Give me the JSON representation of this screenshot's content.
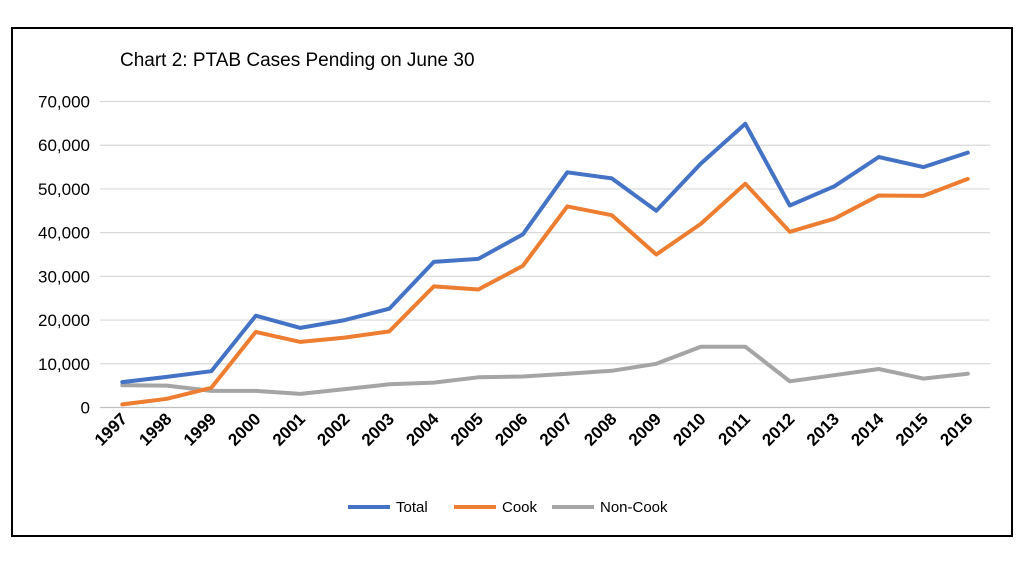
{
  "chart_data": {
    "type": "line",
    "title": "Chart 2:  PTAB Cases Pending on June 30",
    "xlabel": "",
    "ylabel": "",
    "ylim": [
      0,
      70000
    ],
    "yticks": [
      "0",
      "10,000",
      "20,000",
      "30,000",
      "40,000",
      "50,000",
      "60,000",
      "70,000"
    ],
    "grid": true,
    "legend_position": "bottom",
    "categories": [
      "1997",
      "1998",
      "1999",
      "2000",
      "2001",
      "2002",
      "2003",
      "2004",
      "2005",
      "2006",
      "2007",
      "2008",
      "2009",
      "2010",
      "2011",
      "2012",
      "2013",
      "2014",
      "2015",
      "2016"
    ],
    "series": [
      {
        "name": "Total",
        "color": "#4472C4",
        "values": [
          5800,
          7000,
          8300,
          21000,
          18200,
          20000,
          22600,
          33300,
          34000,
          39600,
          53800,
          52400,
          45000,
          55800,
          64900,
          46200,
          50600,
          57300,
          55000,
          58300
        ]
      },
      {
        "name": "Cook",
        "color": "#ED7D31",
        "values": [
          700,
          2000,
          4500,
          17300,
          15000,
          16000,
          17400,
          27700,
          27000,
          32400,
          46000,
          44000,
          35000,
          42000,
          51200,
          40200,
          43200,
          48500,
          48400,
          52300
        ]
      },
      {
        "name": "Non-Cook",
        "color": "#A5A5A5",
        "values": [
          5100,
          5000,
          3800,
          3800,
          3100,
          4200,
          5300,
          5700,
          6900,
          7100,
          7700,
          8400,
          10000,
          13900,
          13900,
          6000,
          7400,
          8800,
          6600,
          7700
        ]
      }
    ]
  }
}
